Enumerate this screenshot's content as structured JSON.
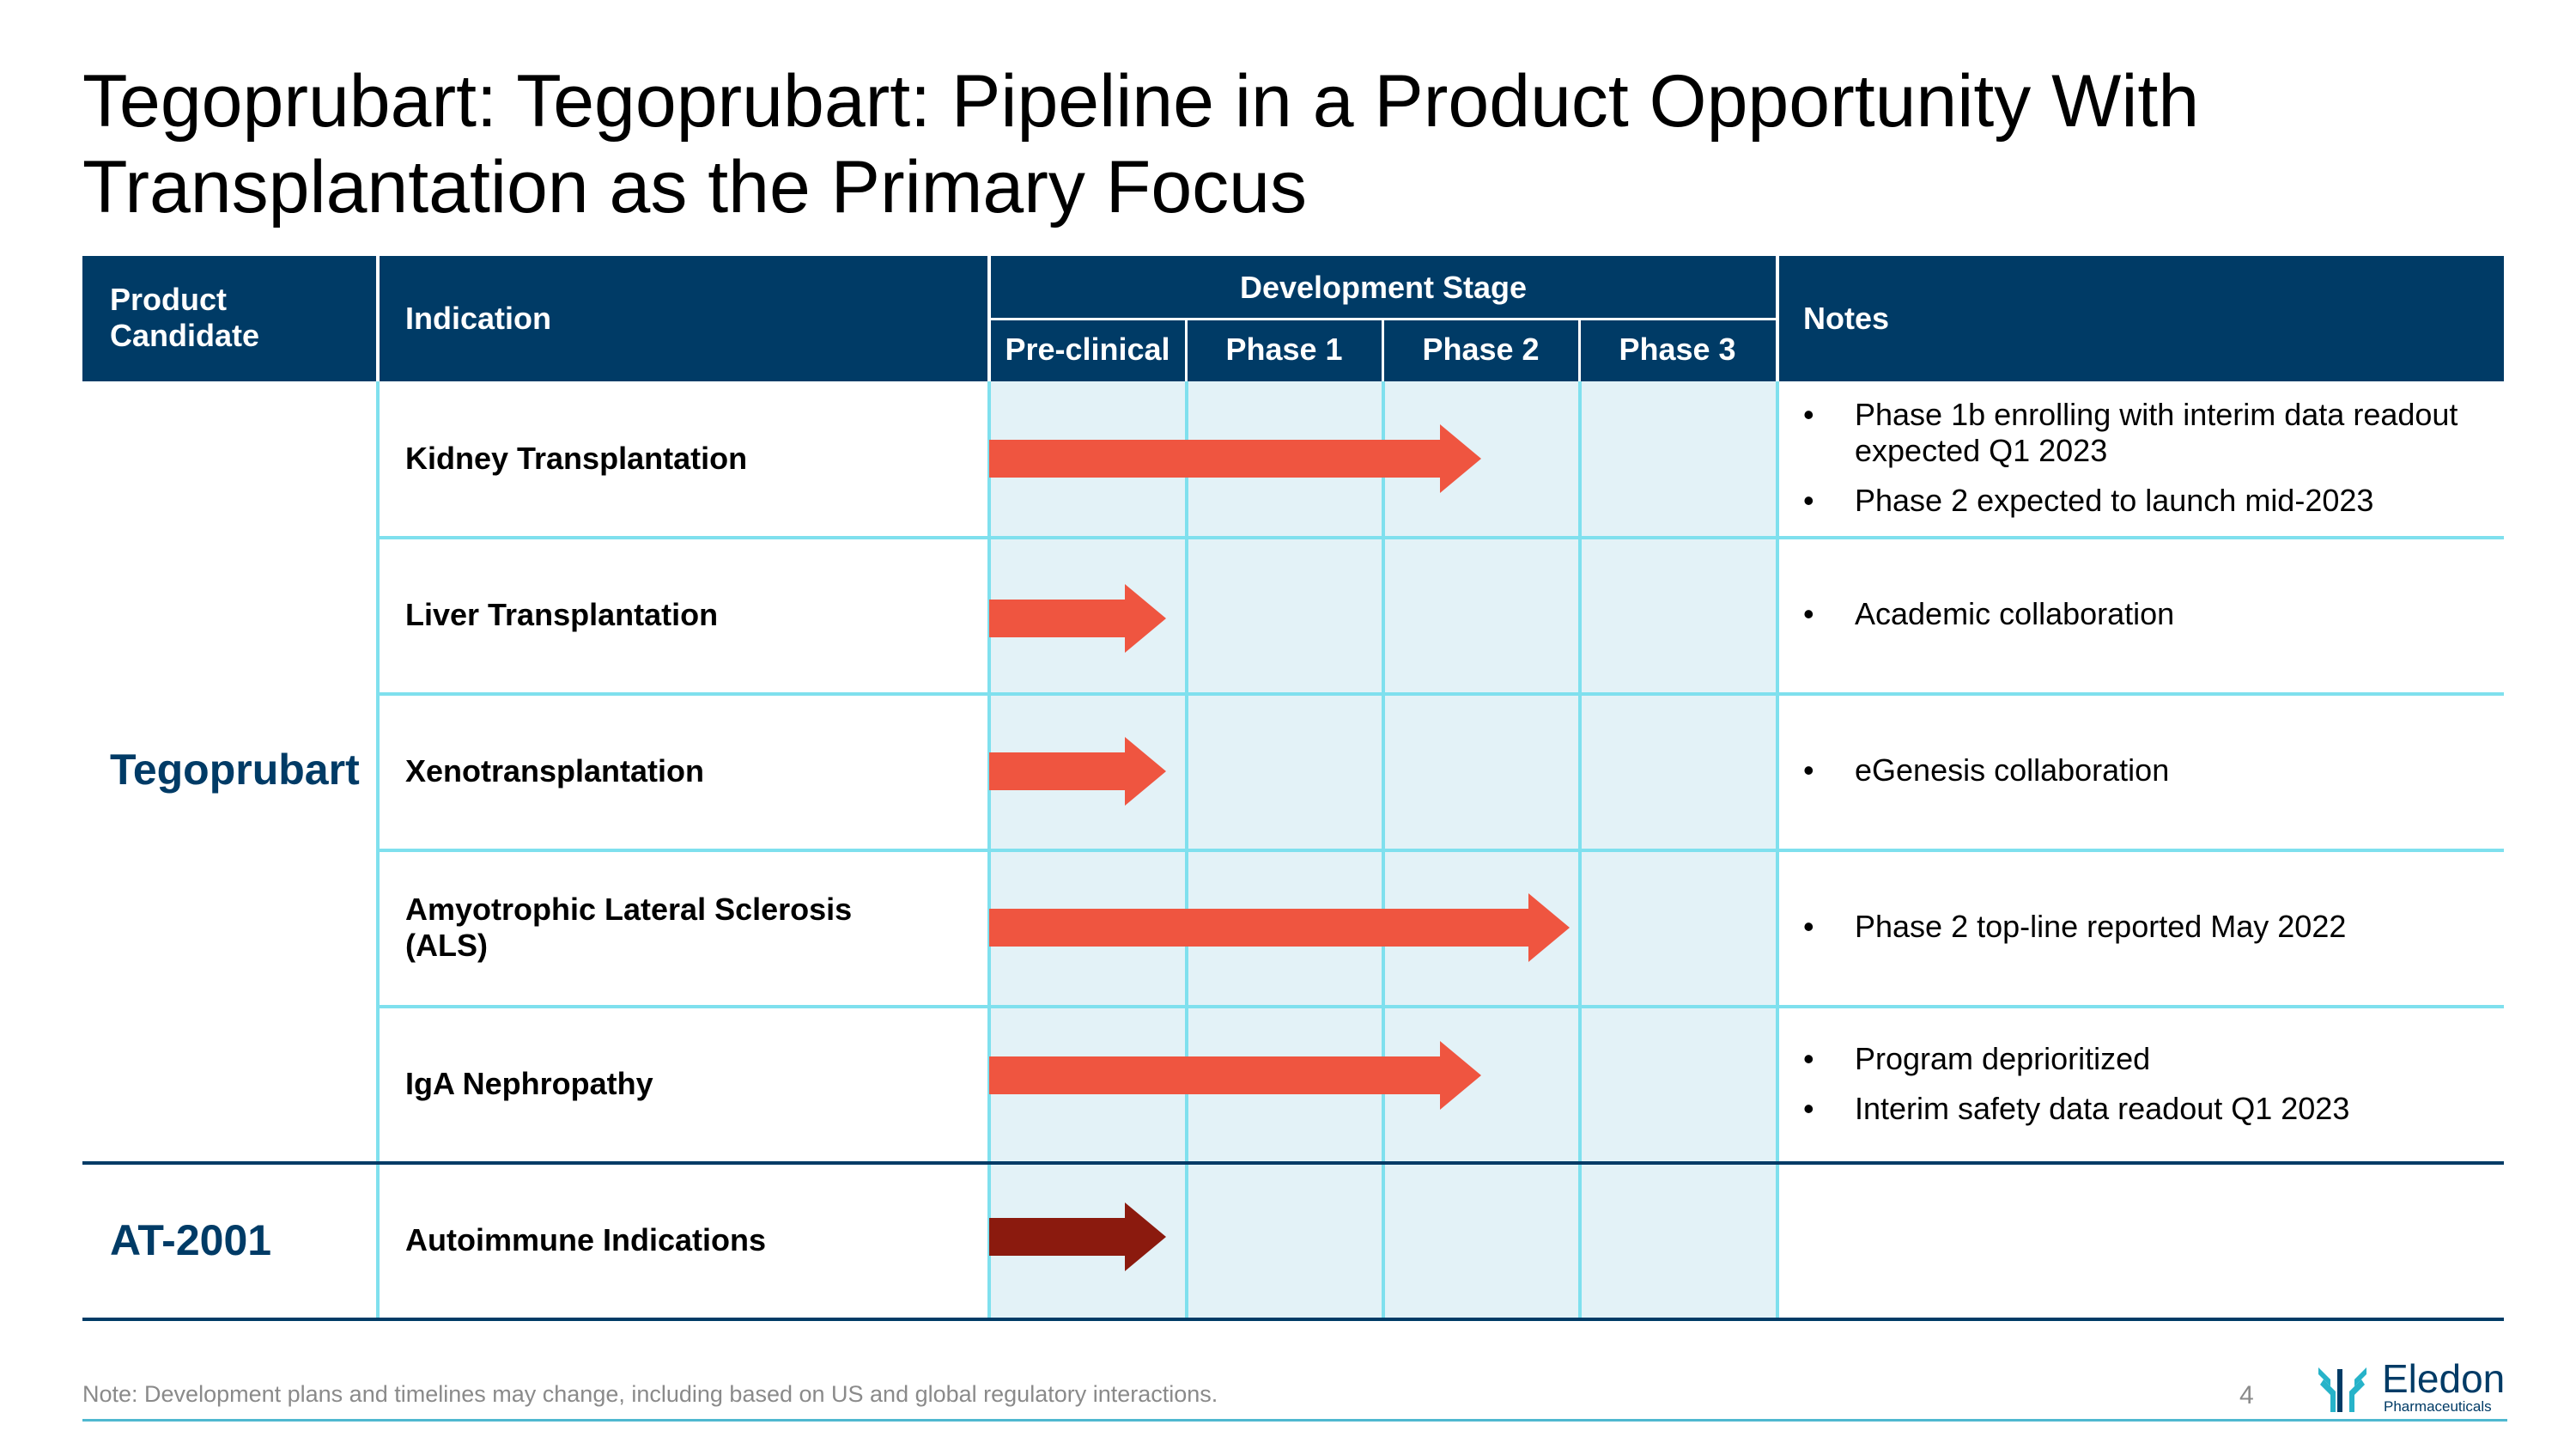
{
  "title": {
    "line1": "Tegoprubart: Tegoprubart: Pipeline in a Product Opportunity With",
    "line2": "Transplantation as the Primary Focus"
  },
  "table": {
    "headers": {
      "product_candidate": "Product Candidate",
      "indication": "Indication",
      "development_stage": "Development Stage",
      "stages": [
        "Pre-clinical",
        "Phase 1",
        "Phase 2",
        "Phase 3"
      ],
      "notes": "Notes"
    },
    "products": [
      {
        "name": "Tegoprubart"
      },
      {
        "name": "AT-2001"
      }
    ],
    "rows": [
      {
        "indication": "Kidney Transplantation",
        "stage_progress": 2.5,
        "notes": [
          "Phase 1b enrolling with interim data readout expected Q1 2023",
          "Phase 2 expected to launch mid-2023"
        ]
      },
      {
        "indication": "Liver Transplantation",
        "stage_progress": 0.9,
        "notes": [
          "Academic collaboration"
        ]
      },
      {
        "indication": "Xenotransplantation",
        "stage_progress": 0.9,
        "notes": [
          "eGenesis collaboration"
        ]
      },
      {
        "indication": "Amyotrophic Lateral Sclerosis (ALS)",
        "stage_progress": 2.95,
        "notes": [
          "Phase 2 top-line reported May 2022"
        ]
      },
      {
        "indication": "IgA Nephropathy",
        "stage_progress": 2.5,
        "notes": [
          "Program deprioritized",
          "Interim safety data readout Q1 2023"
        ]
      },
      {
        "indication": "Autoimmune Indications",
        "stage_progress": 0.9,
        "notes": []
      }
    ]
  },
  "footnote": "Note: Development plans and timelines may change, including based on US and global regulatory interactions.",
  "page_number": "4",
  "logo": {
    "name": "Eledon",
    "sub": "Pharmaceuticals"
  },
  "colors": {
    "navy": "#003b66",
    "arrow_red": "#ef5540",
    "arrow_dark": "#8b1a0e",
    "grid_cyan": "#7fe0ee",
    "stage_bg": "#e3f2f7"
  }
}
